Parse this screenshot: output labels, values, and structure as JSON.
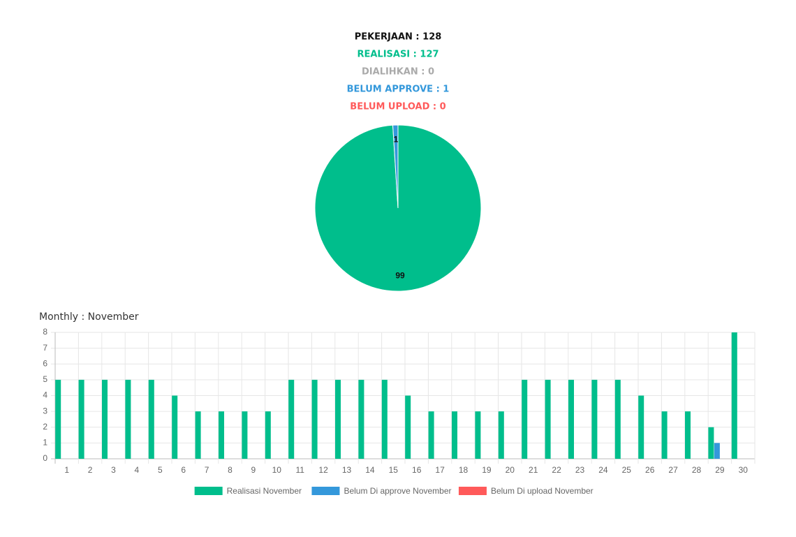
{
  "summary": [
    "PEKERJAAN : 128",
    "REALISASI : 127",
    "DIALIHKAN : 0",
    "BELUM APPROVE : 1",
    "BELUM UPLOAD : 0"
  ],
  "chart_data": [
    {
      "type": "pie",
      "values": [
        99,
        1
      ],
      "colors": [
        "#00be8c",
        "#3498db"
      ]
    },
    {
      "type": "bar",
      "title": "Monthly : November",
      "categories": [
        "1",
        "2",
        "3",
        "4",
        "5",
        "6",
        "7",
        "8",
        "9",
        "10",
        "11",
        "12",
        "13",
        "14",
        "15",
        "16",
        "17",
        "18",
        "19",
        "20",
        "21",
        "22",
        "23",
        "24",
        "25",
        "26",
        "27",
        "28",
        "29",
        "30"
      ],
      "series": [
        {
          "name": "Realisasi November",
          "color": "#00be8c",
          "values": [
            5,
            5,
            5,
            5,
            5,
            4,
            3,
            3,
            3,
            3,
            5,
            5,
            5,
            5,
            5,
            4,
            3,
            3,
            3,
            3,
            5,
            5,
            5,
            5,
            5,
            4,
            3,
            3,
            2,
            8
          ]
        },
        {
          "name": "Belum Di approve November",
          "color": "#3498db",
          "values": [
            0,
            0,
            0,
            0,
            0,
            0,
            0,
            0,
            0,
            0,
            0,
            0,
            0,
            0,
            0,
            0,
            0,
            0,
            0,
            0,
            0,
            0,
            0,
            0,
            0,
            0,
            0,
            0,
            1,
            0
          ]
        },
        {
          "name": "Belum Di upload November",
          "color": "#ff5a5a",
          "values": [
            0,
            0,
            0,
            0,
            0,
            0,
            0,
            0,
            0,
            0,
            0,
            0,
            0,
            0,
            0,
            0,
            0,
            0,
            0,
            0,
            0,
            0,
            0,
            0,
            0,
            0,
            0,
            0,
            0,
            0
          ]
        }
      ],
      "ylim": [
        0,
        8
      ],
      "yticks": [
        0,
        1,
        2,
        3,
        4,
        5,
        6,
        7,
        8
      ],
      "grid": true
    }
  ]
}
